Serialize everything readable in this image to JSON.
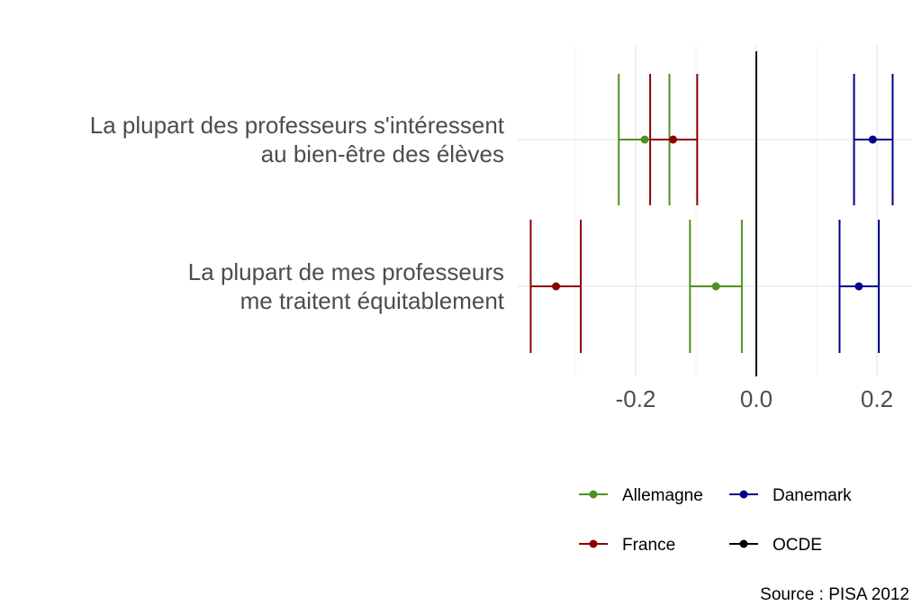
{
  "chart_data": {
    "type": "errorbar",
    "categories": [
      [
        "La plupart des professeurs s'intéressent",
        "au bien-être des élèves"
      ],
      [
        "La plupart de mes professeurs",
        "me traitent équitablement"
      ]
    ],
    "series": [
      {
        "name": "Allemagne",
        "color": "#4d9221",
        "values": [
          -0.185,
          -0.067
        ],
        "lower": [
          -0.228,
          -0.11
        ],
        "upper": [
          -0.144,
          -0.024
        ]
      },
      {
        "name": "Danemark",
        "color": "#00008b",
        "values": [
          0.193,
          0.17
        ],
        "lower": [
          0.162,
          0.138
        ],
        "upper": [
          0.226,
          0.203
        ]
      },
      {
        "name": "France",
        "color": "#8b0000",
        "values": [
          -0.138,
          -0.332
        ],
        "lower": [
          -0.176,
          -0.374
        ],
        "upper": [
          -0.098,
          -0.291
        ]
      },
      {
        "name": "OCDE",
        "color": "#000000",
        "vline": 0.0
      }
    ],
    "x_ticks": [
      -0.2,
      0.0,
      0.2
    ],
    "x_tick_labels": [
      "-0.2",
      "0.0",
      "0.2"
    ],
    "xlim": [
      -0.37,
      0.26
    ],
    "grid": true,
    "legend_position": "bottom-right",
    "caption": "Source : PISA 2012"
  }
}
